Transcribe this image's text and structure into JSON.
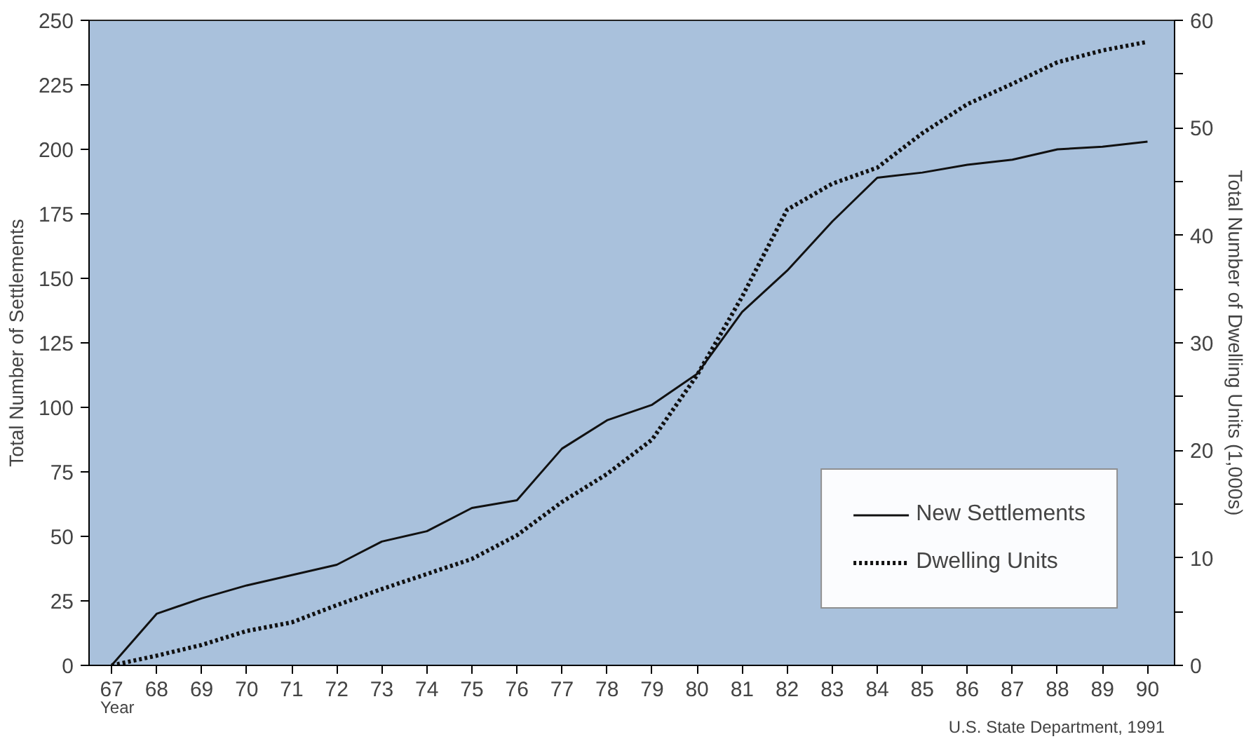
{
  "chart_data": {
    "type": "line",
    "xlabel": "Year",
    "ylabel": "Total Number of Settlements",
    "y2label": "Total Number of Dwelling Units (1,000s)",
    "annotations": [
      "U.S. State Department, 1991"
    ],
    "x": [
      67,
      68,
      69,
      70,
      71,
      72,
      73,
      74,
      75,
      76,
      77,
      78,
      79,
      80,
      81,
      82,
      83,
      84,
      85,
      86,
      87,
      88,
      89,
      90
    ],
    "series": [
      {
        "name": "New Settlements",
        "color": "#111111",
        "line_style": "solid",
        "values": [
          0,
          20,
          26,
          31,
          35,
          39,
          48,
          52,
          61,
          64,
          84,
          95,
          101,
          113,
          137,
          153,
          172,
          189,
          191,
          194,
          196,
          200,
          201,
          203
        ]
      },
      {
        "name": "Dwelling Units",
        "color": "#111111",
        "line_style": "dotted",
        "axis": "y2",
        "values": [
          0,
          0.9,
          1.9,
          3.2,
          4.0,
          5.6,
          7.1,
          8.5,
          9.9,
          12.1,
          15.2,
          17.8,
          21.0,
          27,
          34.3,
          42.4,
          44.8,
          46.3,
          49.5,
          52.2,
          54.1,
          56.1,
          57.2,
          58
        ]
      }
    ],
    "xlim": [
      66.5,
      90.6
    ],
    "xticks": [
      67,
      68,
      69,
      70,
      71,
      72,
      73,
      74,
      75,
      76,
      77,
      78,
      79,
      80,
      81,
      82,
      83,
      84,
      85,
      86,
      87,
      88,
      89,
      90
    ],
    "ylim": [
      0,
      250
    ],
    "yticks": [
      0,
      25,
      50,
      75,
      100,
      125,
      150,
      175,
      200,
      225,
      250
    ],
    "y2lim": [
      0,
      60
    ],
    "y2ticks": [
      0,
      {
        "value": 5,
        "label": null
      },
      10,
      {
        "value": 15,
        "label": null
      },
      20,
      {
        "value": 25,
        "label": null
      },
      30,
      {
        "value": 35,
        "label": null
      },
      40,
      {
        "value": 45,
        "label": null
      },
      50,
      {
        "value": 55,
        "label": null
      },
      60
    ],
    "grid": false,
    "legend": "bottom right",
    "marker": "none"
  }
}
